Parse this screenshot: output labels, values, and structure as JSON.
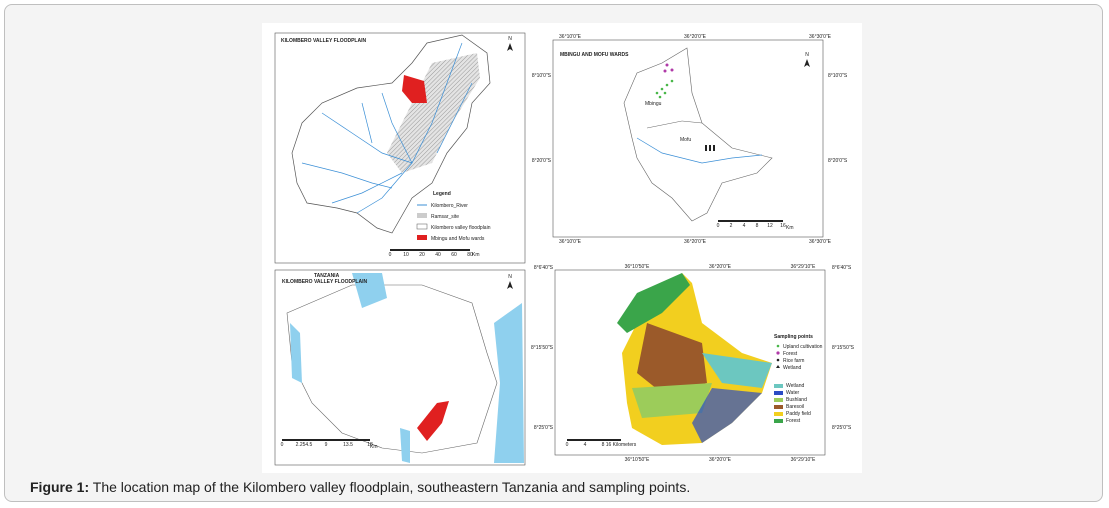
{
  "caption": {
    "label": "Figure 1:",
    "text": "The location map of the Kilombero valley floodplain, southeastern Tanzania and sampling points."
  },
  "panels": [
    {
      "title": "KILOMBERO VALLEY FLOODPLAIN",
      "north": "N",
      "legend_title": "Legend",
      "legend": [
        "Kilombero_River",
        "Ramsar_site",
        "Kilombero valley floodplain",
        "Mbingu and Mofu wards"
      ],
      "scale": [
        "0",
        "10",
        "20",
        "40",
        "60",
        "80"
      ],
      "scale_unit": "Km"
    },
    {
      "title": "MBINGU AND MOFU WARDS",
      "north": "N",
      "places": [
        "Mbingu",
        "Mofu"
      ],
      "x_coords": [
        "36°10'0\"E",
        "36°20'0\"E",
        "36°30'0\"E"
      ],
      "y_coords": [
        "8°10'0\"S",
        "8°20'0\"S"
      ],
      "scale": [
        "0",
        "2",
        "4",
        "8",
        "12",
        "16"
      ],
      "scale_unit": "Km"
    },
    {
      "title": [
        "TANZANIA",
        "KILOMBERO VALLEY FLOODPLAIN"
      ],
      "north": "N",
      "scale": [
        "0",
        "2.254.5",
        "9",
        "13.5",
        "18"
      ],
      "scale_unit": "Km"
    },
    {
      "x_coords": [
        "36°10'50\"E",
        "36°20'0\"E",
        "36°29'10\"E"
      ],
      "y_coords": [
        "8°6'40\"S",
        "8°15'50\"S",
        "8°25'0\"S"
      ],
      "sampling_title": "Sampling points",
      "sampling": [
        "Upland cultivation",
        "Forest",
        "Rice farm",
        "Wetland"
      ],
      "landcover": [
        "Wetland",
        "Water",
        "Bushland",
        "Baresoil",
        "Paddy field",
        "Forest"
      ],
      "scale": [
        "0",
        "4",
        "8",
        "16 Kilometers"
      ]
    }
  ]
}
